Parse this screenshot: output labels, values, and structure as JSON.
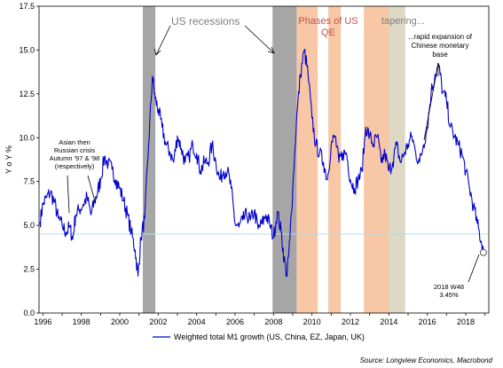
{
  "chart_data": {
    "type": "line",
    "ylabel": "Y o Y %",
    "ylim": [
      0,
      17.5
    ],
    "yticks": [
      "0.0",
      "2.5",
      "5.0",
      "7.5",
      "10.0",
      "12.5",
      "15.0",
      "17.5"
    ],
    "xlim": [
      1995.8,
      2019.2
    ],
    "xticks": [
      "1996",
      "1998",
      "2000",
      "2002",
      "2004",
      "2006",
      "2008",
      "2010",
      "2012",
      "2014",
      "2016",
      "2018"
    ],
    "reference_line": 4.5,
    "shaded_periods": [
      {
        "group": "US recessions",
        "start": 2001.2,
        "end": 2001.85,
        "color": "#a6a6a6"
      },
      {
        "group": "US recessions",
        "start": 2007.95,
        "end": 2009.45,
        "color": "#a6a6a6"
      },
      {
        "group": "Phases of US QE",
        "start": 2009.2,
        "end": 2010.3,
        "color": "#f7c7a6"
      },
      {
        "group": "Phases of US QE",
        "start": 2010.85,
        "end": 2011.5,
        "color": "#f7c7a6"
      },
      {
        "group": "Phases of US QE",
        "start": 2012.7,
        "end": 2014.0,
        "color": "#f7c7a6"
      },
      {
        "group": "tapering",
        "start": 2014.0,
        "end": 2014.85,
        "color": "#ddd8c4"
      }
    ],
    "series": [
      {
        "name": "Weighted total M1 growth (US, China, EZ, Japan, UK)",
        "color": "#0000cc",
        "x": [
          1995.85,
          1996.0,
          1996.2,
          1996.4,
          1996.6,
          1996.8,
          1997.0,
          1997.2,
          1997.4,
          1997.55,
          1997.7,
          1997.9,
          1998.1,
          1998.3,
          1998.5,
          1998.7,
          1998.85,
          1999.0,
          1999.2,
          1999.4,
          1999.6,
          1999.8,
          2000.0,
          2000.2,
          2000.4,
          2000.6,
          2000.8,
          2000.95,
          2001.1,
          2001.3,
          2001.5,
          2001.7,
          2001.85,
          2002.0,
          2002.2,
          2002.4,
          2002.6,
          2002.8,
          2003.0,
          2003.2,
          2003.4,
          2003.6,
          2003.8,
          2004.0,
          2004.2,
          2004.4,
          2004.6,
          2004.8,
          2005.0,
          2005.2,
          2005.4,
          2005.6,
          2005.8,
          2006.0,
          2006.2,
          2006.4,
          2006.6,
          2006.8,
          2007.0,
          2007.2,
          2007.4,
          2007.6,
          2007.8,
          2008.0,
          2008.2,
          2008.4,
          2008.55,
          2008.7,
          2008.85,
          2009.0,
          2009.2,
          2009.4,
          2009.6,
          2009.8,
          2010.0,
          2010.2,
          2010.4,
          2010.6,
          2010.8,
          2011.0,
          2011.2,
          2011.4,
          2011.6,
          2011.8,
          2012.0,
          2012.2,
          2012.4,
          2012.6,
          2012.8,
          2013.0,
          2013.2,
          2013.4,
          2013.6,
          2013.8,
          2014.0,
          2014.2,
          2014.4,
          2014.6,
          2014.8,
          2015.0,
          2015.2,
          2015.4,
          2015.6,
          2015.8,
          2016.0,
          2016.2,
          2016.4,
          2016.6,
          2016.8,
          2017.0,
          2017.2,
          2017.4,
          2017.6,
          2017.8,
          2018.0,
          2018.2,
          2018.4,
          2018.6,
          2018.8,
          2018.92
        ],
        "values": [
          5.2,
          6.2,
          6.6,
          6.9,
          6.3,
          5.4,
          5.0,
          4.6,
          4.9,
          4.2,
          5.6,
          5.9,
          6.2,
          6.6,
          5.6,
          6.4,
          6.9,
          7.6,
          8.9,
          8.5,
          8.2,
          7.6,
          7.1,
          6.4,
          5.6,
          4.6,
          3.6,
          2.1,
          4.3,
          5.4,
          9.6,
          13.5,
          12.2,
          11.6,
          10.6,
          9.6,
          9.2,
          8.6,
          10.1,
          9.4,
          8.6,
          8.9,
          9.6,
          9.1,
          8.1,
          8.6,
          8.6,
          9.6,
          8.6,
          7.6,
          8.1,
          8.1,
          7.1,
          5.1,
          4.9,
          5.3,
          5.6,
          5.3,
          5.8,
          4.8,
          5.1,
          5.6,
          5.1,
          4.3,
          5.8,
          4.6,
          3.1,
          2.1,
          4.2,
          7.1,
          11.1,
          13.6,
          15.0,
          13.6,
          11.1,
          9.6,
          9.1,
          8.6,
          7.6,
          9.6,
          10.1,
          8.6,
          9.1,
          9.1,
          7.6,
          7.1,
          7.6,
          8.1,
          10.6,
          10.1,
          9.6,
          10.1,
          8.6,
          9.1,
          8.1,
          8.6,
          9.6,
          8.6,
          9.1,
          9.6,
          10.1,
          9.1,
          8.6,
          9.6,
          10.6,
          12.6,
          13.6,
          14.1,
          12.6,
          12.1,
          10.6,
          10.1,
          9.6,
          9.1,
          8.1,
          7.1,
          6.1,
          5.1,
          4.1,
          3.45
        ]
      }
    ],
    "annotations": {
      "asian": [
        "Asian then",
        "Russian crisis",
        "Autumn '97 & '98",
        "(respectively)"
      ],
      "recessions": "US recessions",
      "qe": [
        "Phases of US",
        "QE"
      ],
      "tapering": "tapering...",
      "china": [
        "...rapid expansion of",
        "Chinese monetary",
        "base"
      ],
      "last_point": [
        "2018 W48",
        "3.45%"
      ]
    },
    "source": "Source: Longview Economics, Macrobond",
    "grid": false,
    "legend_position": "bottom-left"
  }
}
